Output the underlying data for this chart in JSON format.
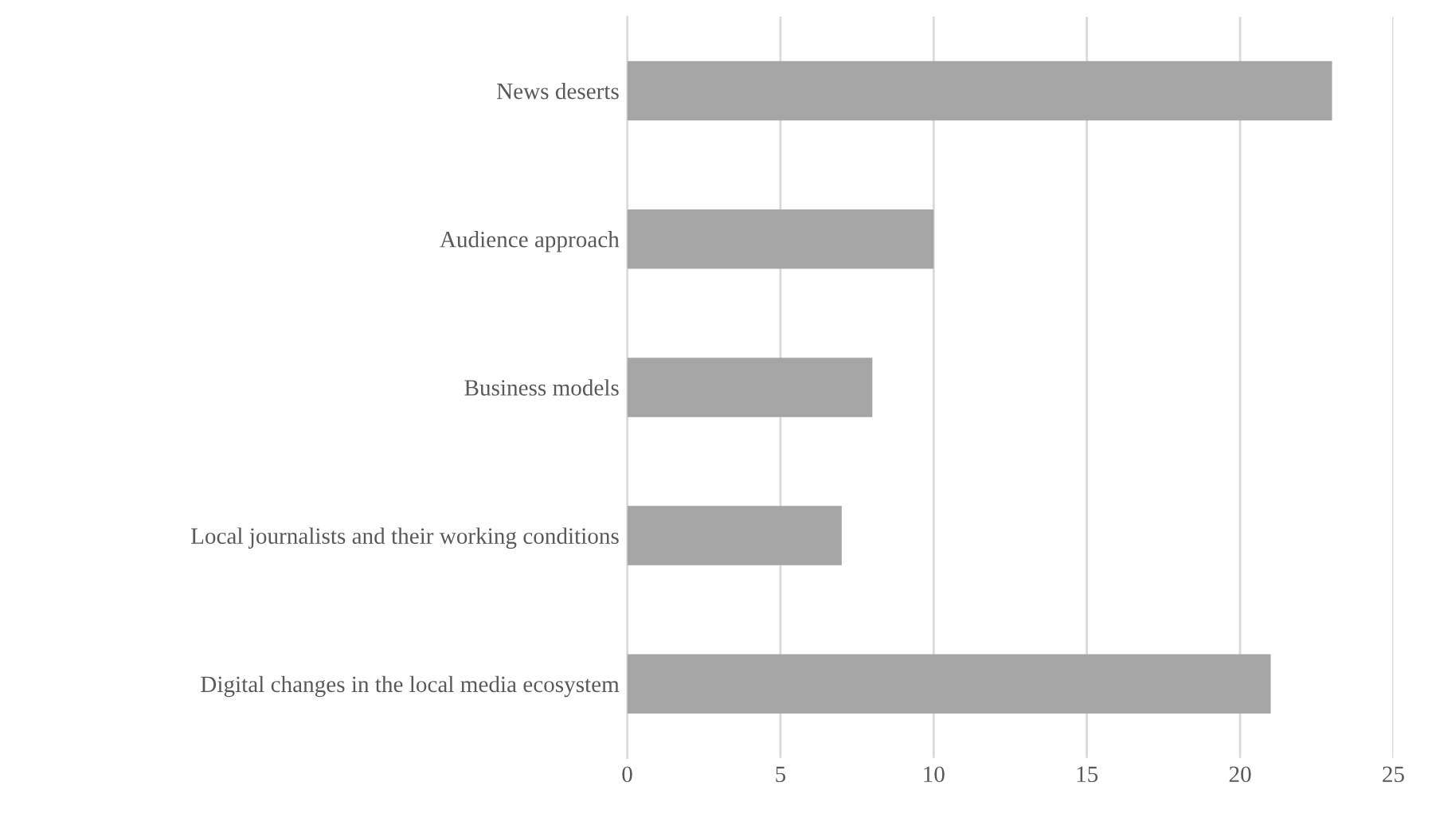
{
  "chart_data": {
    "type": "bar",
    "orientation": "horizontal",
    "categories": [
      "News deserts",
      "Audience approach",
      "Business models",
      "Local journalists and their working conditions",
      "Digital changes in the local media ecosystem"
    ],
    "values": [
      23,
      10,
      8,
      7,
      21
    ],
    "color": "#a5a5a5",
    "xlim": [
      0,
      25
    ],
    "xticks": [
      0,
      5,
      10,
      15,
      20,
      25
    ],
    "grid": "x",
    "legend": false
  }
}
